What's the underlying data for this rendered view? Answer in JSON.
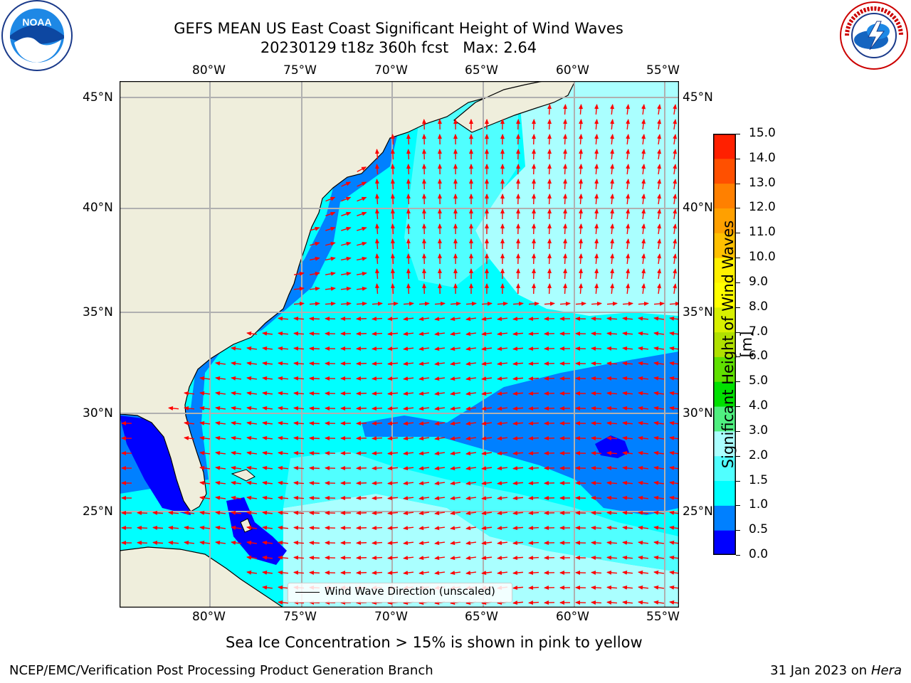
{
  "header": {
    "title_line1": "GEFS MEAN US East Coast Significant Height of Wind Waves",
    "title_line2": "20230129 t18z 360h fcst   Max: 2.64"
  },
  "logos": {
    "left": {
      "icon": "noaa-logo",
      "text": "NOAA"
    },
    "right": {
      "icon": "national-weather-service-logo",
      "text": "NATIONAL WEATHER SERVICE"
    }
  },
  "map": {
    "lon_ticks": [
      "80°W",
      "75°W",
      "70°W",
      "65°W",
      "60°W",
      "55°W"
    ],
    "lat_ticks": [
      "45°N",
      "40°N",
      "35°N",
      "30°N",
      "25°N"
    ],
    "legend_label": "Wind Wave Direction (unscaled)",
    "colors": {
      "land": "#efeedc",
      "arrow": "#ff0000",
      "grid": "#b0b0b0"
    }
  },
  "colorbar": {
    "label": "Significant Height of Wind Waves [m]",
    "ticks": [
      "15.0",
      "14.0",
      "13.0",
      "12.0",
      "11.0",
      "10.0",
      "9.0",
      "8.0",
      "7.0",
      "6.0",
      "5.0",
      "4.0",
      "3.0",
      "2.0",
      "1.5",
      "1.0",
      "0.5",
      "0.0"
    ],
    "bands": [
      {
        "range": "0.0-0.5",
        "color": "#0000ff"
      },
      {
        "range": "0.5-1.0",
        "color": "#0080ff"
      },
      {
        "range": "1.0-1.5",
        "color": "#00ffff"
      },
      {
        "range": "1.5-2.0",
        "color": "#50ffff"
      },
      {
        "range": "2.0-3.0",
        "color": "#aaffff"
      },
      {
        "range": "3.0-4.0",
        "color": "#50f080"
      },
      {
        "range": "4.0-5.0",
        "color": "#00e000"
      },
      {
        "range": "5.0-6.0",
        "color": "#60e000"
      },
      {
        "range": "6.0-7.0",
        "color": "#b0e000"
      },
      {
        "range": "7.0-8.0",
        "color": "#d8f000"
      },
      {
        "range": "8.0-9.0",
        "color": "#ffff00"
      },
      {
        "range": "9.0-10.0",
        "color": "#fff000"
      },
      {
        "range": "10.0-11.0",
        "color": "#ffc000"
      },
      {
        "range": "11.0-12.0",
        "color": "#ffa000"
      },
      {
        "range": "12.0-13.0",
        "color": "#ff8000"
      },
      {
        "range": "13.0-14.0",
        "color": "#ff5000"
      },
      {
        "range": "14.0-15.0",
        "color": "#ff2000"
      }
    ]
  },
  "note": "Sea Ice Concentration > 15% is shown in pink to yellow",
  "footer": {
    "left": "NCEP/EMC/Verification Post Processing Product Generation Branch",
    "date": "31 Jan 2023 on",
    "machine": "Hera"
  }
}
